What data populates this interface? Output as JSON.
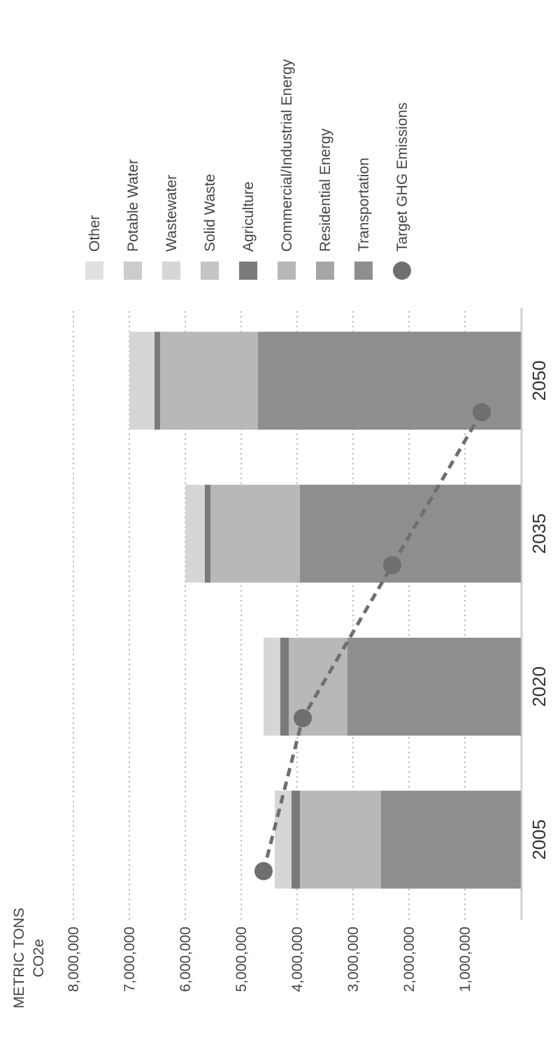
{
  "chart_data": {
    "type": "bar",
    "stacked": true,
    "orientation": "vertical",
    "ylabel": "METRIC TONS",
    "ylabel_sub": "CO2e",
    "ylim": [
      0,
      8000000
    ],
    "yticks": [
      1000000,
      2000000,
      3000000,
      4000000,
      5000000,
      6000000,
      7000000,
      8000000
    ],
    "ytick_labels": [
      "1,000,000",
      "2,000,000",
      "3,000,000",
      "4,000,000",
      "5,000,000",
      "6,000,000",
      "7,000,000",
      "8,000,000"
    ],
    "grid": true,
    "legend_position": "right",
    "categories": [
      "2005",
      "2020",
      "2035",
      "2050"
    ],
    "series": [
      {
        "name": "Transportation",
        "color": "#8e8e8e",
        "values": [
          2500000,
          3100000,
          3950000,
          4700000
        ]
      },
      {
        "name": "Residential Energy",
        "color": "#a6a6a6",
        "values": [
          0,
          0,
          0,
          0
        ]
      },
      {
        "name": "Commercial/Industrial Energy",
        "color": "#b8b8b8",
        "values": [
          1450000,
          1050000,
          1600000,
          1750000
        ]
      },
      {
        "name": "Agriculture",
        "color": "#7a7a7a",
        "values": [
          150000,
          150000,
          100000,
          100000
        ]
      },
      {
        "name": "Solid Waste",
        "color": "#c4c4c4",
        "values": [
          0,
          0,
          0,
          0
        ]
      },
      {
        "name": "Wastewater",
        "color": "#d6d6d6",
        "values": [
          300000,
          300000,
          350000,
          450000
        ]
      },
      {
        "name": "Potable Water",
        "color": "#cccccc",
        "values": [
          0,
          0,
          0,
          0
        ]
      },
      {
        "name": "Other",
        "color": "#e0e0e0",
        "values": [
          0,
          0,
          0,
          0
        ]
      }
    ],
    "target_series": {
      "name": "Target GHG Emissions",
      "color": "#6f6f6f",
      "values": [
        4600000,
        3900000,
        2300000,
        700000
      ]
    }
  }
}
